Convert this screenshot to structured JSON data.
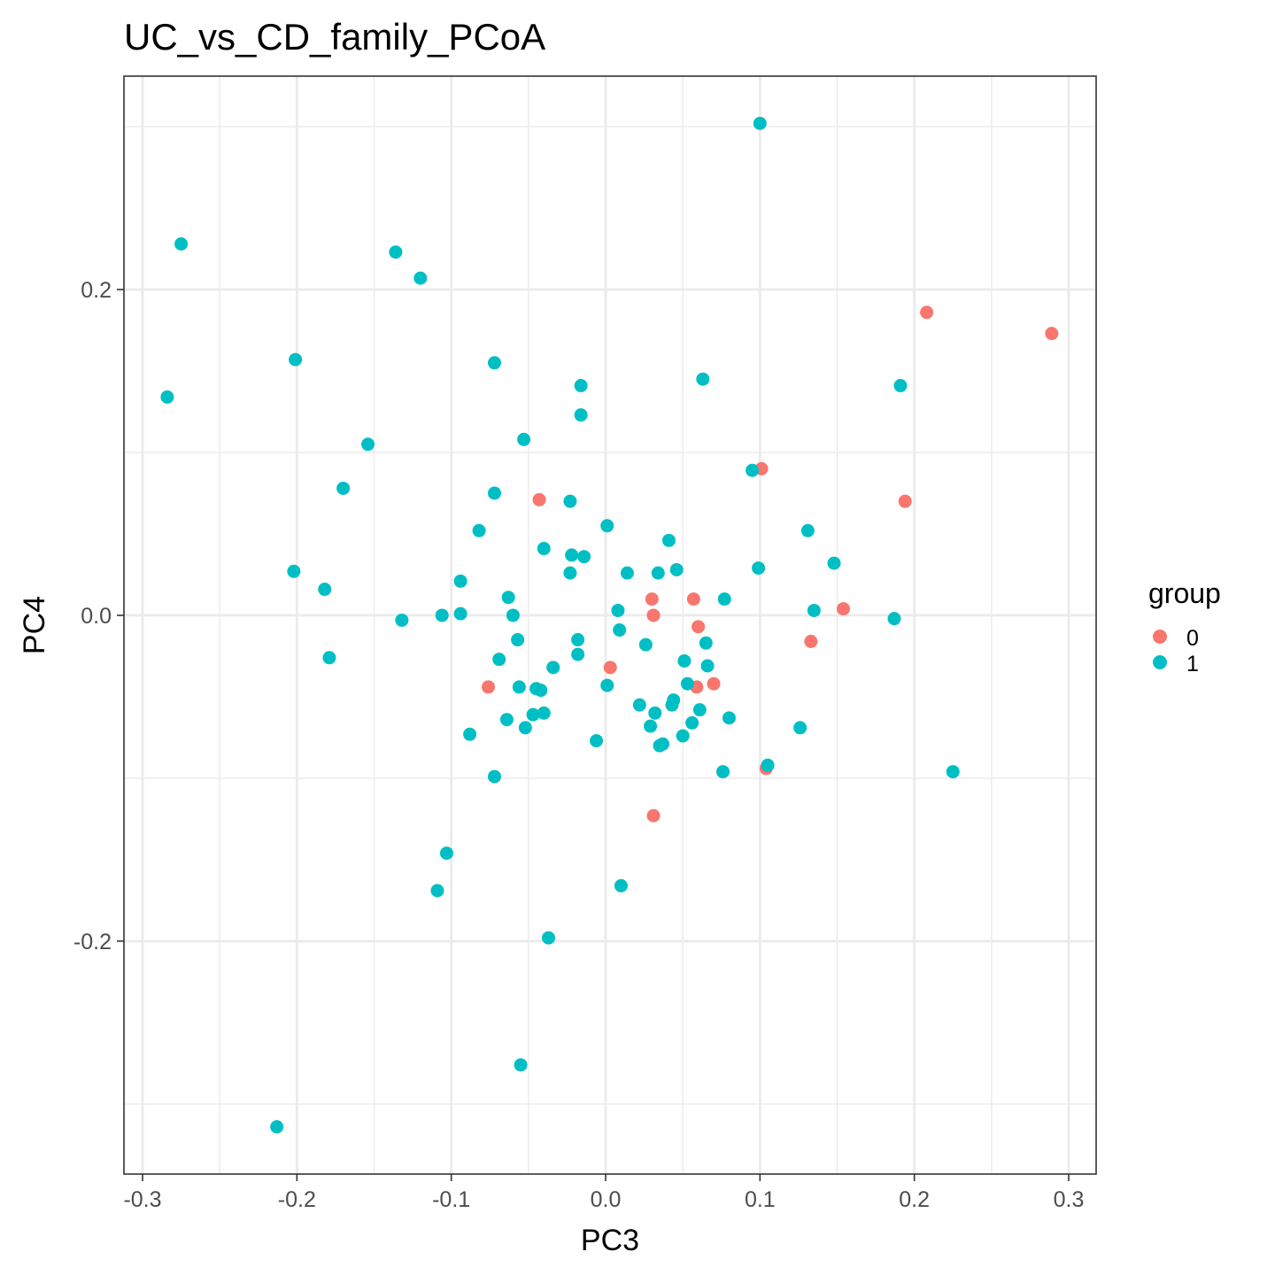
{
  "chart_data": {
    "type": "scatter",
    "title": "UC_vs_CD_family_PCoA",
    "xlabel": "PC3",
    "ylabel": "PC4",
    "xlim": [
      -0.3,
      0.3
    ],
    "ylim": [
      -0.343,
      0.331
    ],
    "xticks": [
      -0.3,
      -0.2,
      -0.1,
      0.0,
      0.1,
      0.2,
      0.3
    ],
    "xtick_labels": [
      "-0.3",
      "-0.2",
      "-0.1",
      "0.0",
      "0.1",
      "0.2",
      "0.3"
    ],
    "yticks": [
      -0.2,
      0.0,
      0.2
    ],
    "ytick_labels": [
      "-0.2",
      "0.0",
      "0.2"
    ],
    "grid": true,
    "legend": {
      "title": "group",
      "position": "right",
      "entries": [
        {
          "label": "0",
          "color": "#F8766D"
        },
        {
          "label": "1",
          "color": "#00BFC4"
        }
      ]
    },
    "series": [
      {
        "name": "0",
        "color": "#F8766D",
        "points": [
          [
            0.208,
            0.186
          ],
          [
            0.289,
            0.173
          ],
          [
            0.101,
            0.09
          ],
          [
            0.194,
            0.07
          ],
          [
            -0.043,
            0.071
          ],
          [
            0.154,
            0.004
          ],
          [
            0.03,
            0.01
          ],
          [
            0.057,
            0.01
          ],
          [
            0.031,
            0.0
          ],
          [
            0.06,
            -0.007
          ],
          [
            0.133,
            -0.016
          ],
          [
            0.003,
            -0.032
          ],
          [
            -0.076,
            -0.044
          ],
          [
            0.059,
            -0.044
          ],
          [
            0.07,
            -0.042
          ],
          [
            0.104,
            -0.094
          ],
          [
            0.031,
            -0.123
          ]
        ]
      },
      {
        "name": "1",
        "color": "#00BFC4",
        "points": [
          [
            0.1,
            0.302
          ],
          [
            -0.275,
            0.228
          ],
          [
            -0.136,
            0.223
          ],
          [
            -0.12,
            0.207
          ],
          [
            -0.201,
            0.157
          ],
          [
            -0.072,
            0.155
          ],
          [
            -0.284,
            0.134
          ],
          [
            0.063,
            0.145
          ],
          [
            -0.016,
            0.141
          ],
          [
            0.191,
            0.141
          ],
          [
            -0.016,
            0.123
          ],
          [
            -0.053,
            0.108
          ],
          [
            -0.154,
            0.105
          ],
          [
            -0.17,
            0.078
          ],
          [
            -0.072,
            0.075
          ],
          [
            0.095,
            0.089
          ],
          [
            -0.023,
            0.07
          ],
          [
            -0.082,
            0.052
          ],
          [
            0.001,
            0.055
          ],
          [
            0.131,
            0.052
          ],
          [
            0.041,
            0.046
          ],
          [
            -0.04,
            0.041
          ],
          [
            -0.022,
            0.037
          ],
          [
            -0.014,
            0.036
          ],
          [
            0.148,
            0.032
          ],
          [
            -0.202,
            0.027
          ],
          [
            -0.023,
            0.026
          ],
          [
            0.014,
            0.026
          ],
          [
            0.034,
            0.026
          ],
          [
            0.046,
            0.028
          ],
          [
            0.099,
            0.029
          ],
          [
            -0.094,
            0.021
          ],
          [
            -0.182,
            0.016
          ],
          [
            -0.063,
            0.011
          ],
          [
            0.077,
            0.01
          ],
          [
            -0.132,
            -0.003
          ],
          [
            -0.106,
            0.0
          ],
          [
            -0.094,
            0.001
          ],
          [
            -0.06,
            0.0
          ],
          [
            0.008,
            0.003
          ],
          [
            0.135,
            0.003
          ],
          [
            0.187,
            -0.002
          ],
          [
            -0.057,
            -0.015
          ],
          [
            0.009,
            -0.009
          ],
          [
            -0.018,
            -0.015
          ],
          [
            0.026,
            -0.018
          ],
          [
            0.065,
            -0.017
          ],
          [
            -0.179,
            -0.026
          ],
          [
            -0.069,
            -0.027
          ],
          [
            -0.018,
            -0.024
          ],
          [
            -0.034,
            -0.032
          ],
          [
            0.051,
            -0.028
          ],
          [
            0.066,
            -0.031
          ],
          [
            0.001,
            -0.043
          ],
          [
            0.053,
            -0.042
          ],
          [
            -0.056,
            -0.044
          ],
          [
            -0.045,
            -0.045
          ],
          [
            -0.042,
            -0.046
          ],
          [
            0.044,
            -0.052
          ],
          [
            0.043,
            -0.055
          ],
          [
            0.022,
            -0.055
          ],
          [
            0.061,
            -0.058
          ],
          [
            -0.04,
            -0.06
          ],
          [
            -0.047,
            -0.061
          ],
          [
            0.032,
            -0.06
          ],
          [
            -0.064,
            -0.064
          ],
          [
            0.08,
            -0.063
          ],
          [
            0.029,
            -0.068
          ],
          [
            0.056,
            -0.066
          ],
          [
            -0.052,
            -0.069
          ],
          [
            0.126,
            -0.069
          ],
          [
            -0.088,
            -0.073
          ],
          [
            0.05,
            -0.074
          ],
          [
            -0.006,
            -0.077
          ],
          [
            0.037,
            -0.079
          ],
          [
            0.035,
            -0.08
          ],
          [
            0.105,
            -0.092
          ],
          [
            0.076,
            -0.096
          ],
          [
            -0.072,
            -0.099
          ],
          [
            0.225,
            -0.096
          ],
          [
            -0.103,
            -0.146
          ],
          [
            -0.109,
            -0.169
          ],
          [
            0.01,
            -0.166
          ],
          [
            -0.037,
            -0.198
          ],
          [
            -0.055,
            -0.276
          ],
          [
            -0.213,
            -0.314
          ]
        ]
      }
    ]
  }
}
